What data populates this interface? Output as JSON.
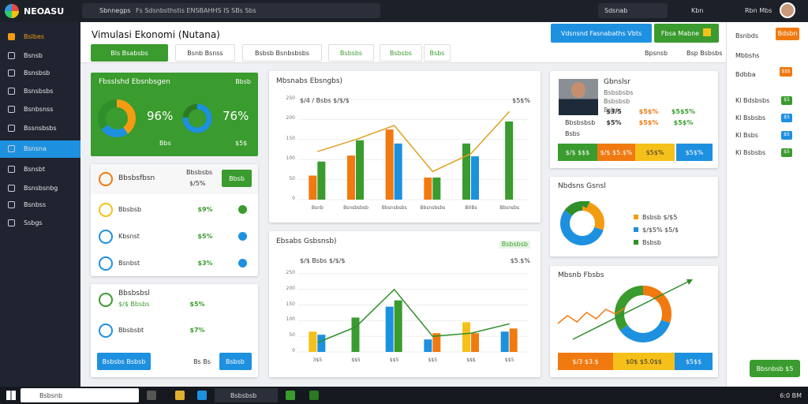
{
  "topbar": {
    "logo": "NEOASU",
    "app": "Sbnnegps",
    "path": "Fs Sdsnbsthstis ENSBAHHS IS SBs Sbs",
    "search": "Sdsnab",
    "user": "Kbn",
    "lang": "Rbn Mbs"
  },
  "sidebar": {
    "items": [
      "Bslbes",
      "Bsnsb",
      "Bsnsbsb",
      "Bsnsbsbs",
      "Bsnbsnss",
      "Bssnsbsbs",
      "Bsnsna",
      "Bsnsbt",
      "Bsnsbsnbg",
      "Bsnbss",
      "Ssbgs"
    ],
    "active": 6
  },
  "header": {
    "title": "Vimulasi Ekonomi (Nutana)",
    "actions": [
      "Vdsnsnd Fasnabaths Vbts",
      "Fbsa Mabne"
    ]
  },
  "tabs": {
    "items": [
      "Bls Bsabsbs",
      "Bsnb Bsnss",
      "Bsbsb Bsnbsbsbs",
      "Bsbsbs",
      "Bsbsbs",
      "Bsbs"
    ],
    "active": 0,
    "tools": [
      "Bpsnsb",
      "Bsp Bsbsbs"
    ]
  },
  "summary": {
    "title": "Fbsslshd Ebsnbsgen",
    "badge": "Bbsb",
    "donut_1": {
      "label": "96%",
      "values": [
        40,
        25,
        35
      ],
      "colors": [
        "#f39c12",
        "#1e90e0",
        "#2f8f2a"
      ]
    },
    "donut_2": {
      "label": "76%",
      "value": 76
    },
    "notes": [
      "Bbs",
      "$5$"
    ]
  },
  "list_1": {
    "title": "Bbsbsfbsn",
    "subtitle": "Bbsbsbs",
    "sub_value": "$/5%",
    "button": "Bbsb",
    "rows": [
      {
        "name": "Bbsbsb",
        "value": "$9%"
      },
      {
        "name": "Kbsnst",
        "value": "$5%"
      },
      {
        "name": "Bsnbst",
        "value": "$3%"
      }
    ]
  },
  "list_2": {
    "title": "Bbsbsbsl",
    "subtitle": "$/$ Bbsbs",
    "sub_value": "$5%",
    "row": {
      "name": "Bbsbsbt",
      "value": "$7%"
    },
    "buttons": [
      "Bsbsbs Bsbsb",
      "Bsbsb"
    ],
    "note": "Bs Bs"
  },
  "chart_1": {
    "title": "Mbsnabs Ebsngbs)",
    "note": "$/4 / Bsbs $/$/$",
    "corner": "$5$%",
    "categories": [
      "Bsnb",
      "Bsnsbsbsb",
      "Bbsnsbsbs",
      "Bbsnsbsbs",
      "B0Bs",
      "Bbsnsbs"
    ],
    "ylim": [
      0,
      250
    ],
    "yticks": [
      0,
      50,
      100,
      150,
      200,
      250
    ],
    "series": [
      {
        "color": "#f07a10",
        "values": [
          60,
          110,
          175,
          55,
          null,
          null
        ]
      },
      {
        "color": "#3a9b2e",
        "values": [
          95,
          148,
          null,
          55,
          140,
          195
        ]
      },
      {
        "color": "#1e90e0",
        "values": [
          null,
          null,
          140,
          null,
          108,
          null
        ]
      }
    ],
    "trend": {
      "color": "#e0a020",
      "values": [
        120,
        150,
        185,
        70,
        115,
        220
      ]
    }
  },
  "chart_2": {
    "title": "Ebsabs Gsbsnsb)",
    "note": "$/$ Bsbs $/$/$",
    "corner": "$5.$%",
    "badge": "Bsbsbsb",
    "categories": [
      "3$5",
      "$$5",
      "$$5",
      "$$5",
      "$$$",
      "$$5"
    ],
    "ylim": [
      0,
      250
    ],
    "yticks": [
      0,
      50,
      100,
      150,
      200,
      250
    ],
    "series": [
      {
        "color": "#f5c01a",
        "values": [
          65,
          null,
          null,
          null,
          95,
          null
        ]
      },
      {
        "color": "#1e90e0",
        "values": [
          55,
          null,
          145,
          40,
          null,
          65
        ]
      },
      {
        "color": "#3a9b2e",
        "values": [
          null,
          110,
          165,
          null,
          null,
          null
        ]
      },
      {
        "color": "#f07a10",
        "values": [
          null,
          null,
          null,
          60,
          60,
          75
        ]
      }
    ],
    "trend": {
      "color": "#2f8f2a",
      "values": [
        30,
        80,
        200,
        50,
        60,
        90
      ]
    }
  },
  "profile": {
    "name": "Gbnslsr",
    "lines": [
      "Bsbsbsbs",
      "Bsbsbsb",
      "Bsbs"
    ],
    "stats": [
      [
        "$3/5",
        "$5$%",
        "$5$5%"
      ],
      [
        "$5%",
        "$5$%",
        "$5$%"
      ]
    ],
    "labels": [
      "Bbsbsbsb",
      "Bsbs"
    ],
    "buttons": [
      "$/$ $$$",
      "$/$ $5.$%",
      "$5$%",
      "$5$%"
    ]
  },
  "donut_card": {
    "title": "Nbdsns Gsnsl",
    "values": [
      30,
      55,
      15
    ],
    "colors": [
      "#f39c12",
      "#1e90e0",
      "#2f8f2a"
    ],
    "legend": [
      "Bsbsb $/$5",
      "$/$5% $5/$",
      "Bsbsb"
    ]
  },
  "trend_card": {
    "title": "Mbsnb Fbsbs",
    "ylim": [
      0,
      40
    ],
    "line": [
      10,
      20,
      12,
      24,
      16,
      28,
      22,
      30
    ],
    "line_color": "#f07a10",
    "donut": [
      30,
      35,
      35
    ],
    "colors": [
      "#f07a10",
      "#1e90e0",
      "#3a9b2e"
    ],
    "buttons": [
      "$/3 $3.$",
      "$0$ $5.0$$",
      "$5$$"
    ]
  },
  "right_panel": {
    "rows": [
      "Bsnbds",
      "Mbbshs",
      "Bdbba"
    ],
    "row_buttons": [
      "Bdsbn",
      "$$$"
    ],
    "list": [
      {
        "name": "Kl Bdsbsbs",
        "badge": "$5"
      },
      {
        "name": "Kl Bsbsbs",
        "badge": "$5"
      },
      {
        "name": "Kl Bsbs",
        "badge": "$5"
      },
      {
        "name": "Kl Bsbsbs",
        "badge": "$5"
      }
    ],
    "button": "Bbsnbsb $5"
  },
  "taskbar": {
    "search": "Bsbsnb",
    "app": "Bsbsbsb",
    "clock": "6:0 BM"
  }
}
